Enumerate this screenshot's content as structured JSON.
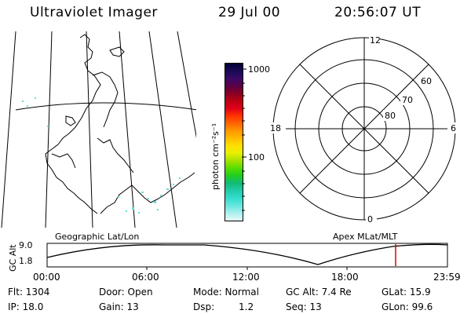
{
  "header": {
    "title": "Ultraviolet Imager",
    "date": "29 Jul 00",
    "time": "20:56:07 UT"
  },
  "colorbar": {
    "unit_label": "photon cm⁻²s⁻¹",
    "tick_labels": [
      "1000",
      "100"
    ],
    "colors": [
      "#000033",
      "#1a0a55",
      "#3a0a66",
      "#5a0044",
      "#880022",
      "#bb0011",
      "#e0001a",
      "#ff3300",
      "#ff6600",
      "#ff9900",
      "#ffbb00",
      "#ffe000",
      "#e6f000",
      "#a6e000",
      "#55dd00",
      "#22cc22",
      "#11bb77",
      "#22ccaa",
      "#33ddcc",
      "#66e6dd",
      "#aaf0ee",
      "#e6fafa"
    ]
  },
  "polar_plot": {
    "mlt_labels": [
      "12",
      "18",
      "6",
      "0"
    ],
    "lat_labels": [
      "60",
      "70",
      "80"
    ]
  },
  "timeline": {
    "y_axis_label": "GC Alt",
    "y_ticks": [
      "9.0",
      "1.8"
    ],
    "left_label": "Geographic Lat/Lon",
    "right_label": "Apex MLat/MLT",
    "x_ticks": [
      "00:00",
      "06:00",
      "12:00",
      "18:00",
      "23:59"
    ],
    "marker_color": "#dd0000"
  },
  "info": {
    "flt": "Flt: 1304",
    "ip": "IP: 18.0",
    "door": "Door: Open",
    "gain": "Gain: 13",
    "mode": "Mode: Normal",
    "dsp_label": "Dsp:",
    "dsp_value": "1.2",
    "gc_alt": "GC Alt: 7.4 Re",
    "seq": "Seq: 13",
    "glat": "GLat: 15.9",
    "glon": "GLon: 99.6"
  }
}
